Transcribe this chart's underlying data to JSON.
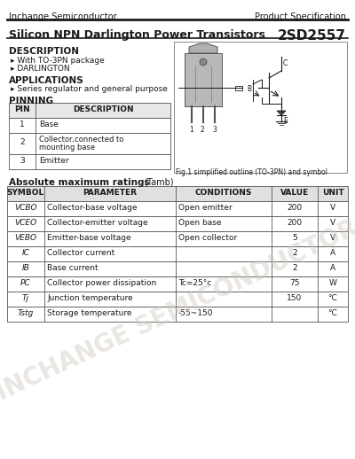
{
  "company": "Inchange Semiconductor",
  "product_spec": "Product Specification",
  "title": "Silicon NPN Darlington Power Transistors",
  "part_number": "2SD2557",
  "desc_title": "DESCRIPTION",
  "desc_lines": [
    "▸ With TO-3PN package",
    "▸ DARLINGTON"
  ],
  "app_title": "APPLICATIONS",
  "app_lines": [
    "▸ Series regulator and general purpose"
  ],
  "pin_title": "PINNING",
  "pin_headers": [
    "PIN",
    "DESCRIPTION"
  ],
  "pin_rows": [
    [
      "1",
      "Base"
    ],
    [
      "2",
      "Collector,connected to\nmounting base"
    ],
    [
      "3",
      "Emitter"
    ]
  ],
  "fig_caption": "Fig.1 simplified outline (TO-3PN) and symbol",
  "abs_title_bold": "Absolute maximum ratings",
  "abs_title_rest": "(Tamb)",
  "abs_headers": [
    "SYMBOL",
    "PARAMETER",
    "CONDITIONS",
    "VALUE",
    "UNIT"
  ],
  "abs_rows": [
    [
      "VCBO",
      "Collector-base voltage",
      "Open emitter",
      "200",
      "V"
    ],
    [
      "VCEO",
      "Collector-emitter voltage",
      "Open base",
      "200",
      "V"
    ],
    [
      "VEBO",
      "Emitter-base voltage",
      "Open collector",
      "5",
      "V"
    ],
    [
      "IC",
      "Collector current",
      "",
      "2",
      "A"
    ],
    [
      "IB",
      "Base current",
      "",
      "2",
      "A"
    ],
    [
      "PC",
      "Collector power dissipation",
      "Tc=25°c",
      "75",
      "W"
    ],
    [
      "Tj",
      "Junction temperature",
      "",
      "150",
      "°C"
    ],
    [
      "Tstg",
      "Storage temperature",
      "-55~150",
      "",
      "°C"
    ]
  ],
  "watermark": "INCHANGE SEMICONDUCTOR",
  "bg": "#ffffff"
}
